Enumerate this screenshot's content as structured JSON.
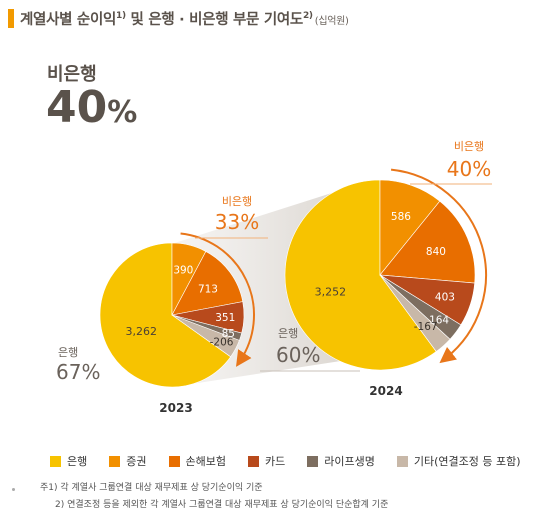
{
  "header": {
    "title": "계열사별 순이익",
    "title_sup": "1)",
    "title_mid": " 및 은행 · 비은행 부문 기여도",
    "title_sup2": "2)",
    "unit": "(십억원)"
  },
  "highlight": {
    "label": "비은행",
    "value": "40",
    "unit": "%"
  },
  "colors": {
    "bank": "#f7c300",
    "securities": "#f29000",
    "insurance": "#e86e00",
    "card": "#b84a1c",
    "life": "#7d6e60",
    "other": "#c8b8a8",
    "accent": "#e8761a",
    "text": "#5a524b"
  },
  "chart_data": [
    {
      "type": "pie",
      "title": "2023",
      "categories": [
        "은행",
        "증권",
        "손해보험",
        "카드",
        "라이프생명",
        "기타(연결조정 등 포함)"
      ],
      "values": [
        3262,
        390,
        713,
        351,
        85,
        -206
      ],
      "value_labels": [
        "3,262",
        "390",
        "713",
        "351",
        "85",
        "-206"
      ],
      "bank_share": {
        "label": "은행",
        "value": "67%"
      },
      "nonbank_share": {
        "label": "비은행",
        "value": "33%"
      }
    },
    {
      "type": "pie",
      "title": "2024",
      "categories": [
        "은행",
        "증권",
        "손해보험",
        "카드",
        "라이프생명",
        "기타(연결조정 등 포함)"
      ],
      "values": [
        3252,
        586,
        840,
        403,
        164,
        -167
      ],
      "value_labels": [
        "3,252",
        "586",
        "840",
        "403",
        "164",
        "-167"
      ],
      "bank_share": {
        "label": "은행",
        "value": "60%"
      },
      "nonbank_share": {
        "label": "비은행",
        "value": "40%"
      }
    }
  ],
  "legend": [
    {
      "label": "은행",
      "color": "#f7c300"
    },
    {
      "label": "증권",
      "color": "#f29000"
    },
    {
      "label": "손해보험",
      "color": "#e86e00"
    },
    {
      "label": "카드",
      "color": "#b84a1c"
    },
    {
      "label": "라이프생명",
      "color": "#7d6e60"
    },
    {
      "label": "기타(연결조정 등 포함)",
      "color": "#c8b8a8"
    }
  ],
  "notes": [
    "주1) 각 계열사 그룹연결 대상 재무제표 상 당기순이익 기준",
    "2) 연결조정 등을 제외한 각 계열사 그룹연결 대상 재무제표 상 당기순이익 단순합계 기준"
  ]
}
